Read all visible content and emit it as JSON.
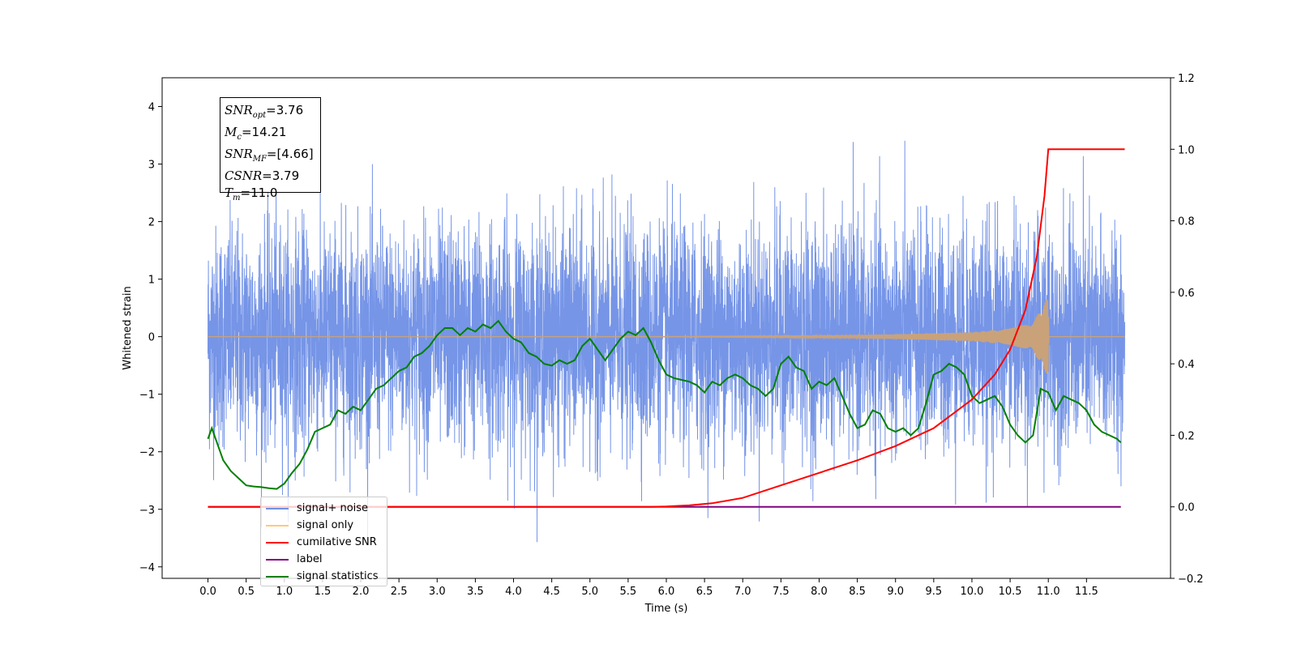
{
  "chart_data": {
    "type": "line",
    "xlabel": "Time (s)",
    "ylabel": "Whitened strain",
    "xlim": [
      -0.6,
      12.6
    ],
    "ylim": [
      -4.2,
      4.5
    ],
    "y2lim": [
      -0.2,
      1.2
    ],
    "x_ticks": [
      "0.0",
      "0.5",
      "1.0",
      "1.5",
      "2.0",
      "2.5",
      "3.0",
      "3.5",
      "4.0",
      "4.5",
      "5.0",
      "5.5",
      "6.0",
      "6.5",
      "7.0",
      "7.5",
      "8.0",
      "8.5",
      "9.0",
      "9.5",
      "10.0",
      "10.5",
      "11.0",
      "11.5"
    ],
    "y_ticks": [
      "4",
      "3",
      "2",
      "1",
      "0",
      "−1",
      "−2",
      "−3",
      "−4"
    ],
    "y2_ticks": [
      "1.2",
      "1.0",
      "0.8",
      "0.6",
      "0.4",
      "0.2",
      "0.0",
      "−0.2"
    ],
    "grid": false,
    "legend_position": "lower-left",
    "legend": [
      "signal+ noise",
      "signal only",
      "cumilative SNR",
      "label",
      "signal statistics"
    ],
    "series": [
      {
        "name": "signal+ noise",
        "color": "#6f8fe6",
        "axis": "left",
        "description": "whitened noise, range about -3.6 to 4.1"
      },
      {
        "name": "signal only",
        "color": "#c9a27a",
        "axis": "left",
        "envelope": {
          "x": [
            0,
            6,
            8,
            9,
            10,
            10.5,
            10.8,
            11.0,
            11.01,
            12.0
          ],
          "amp": [
            0.0,
            0.005,
            0.02,
            0.04,
            0.08,
            0.14,
            0.25,
            0.7,
            0.0,
            0.0
          ]
        }
      },
      {
        "name": "cumilative SNR",
        "color": "#ff0000",
        "axis": "right",
        "x": [
          0,
          5.8,
          6.0,
          6.3,
          6.6,
          7.0,
          7.5,
          8.0,
          8.5,
          9.0,
          9.5,
          10.0,
          10.3,
          10.5,
          10.7,
          10.85,
          10.95,
          11.0,
          11.5,
          12.0
        ],
        "y": [
          0.0,
          0.0,
          0.001,
          0.004,
          0.01,
          0.025,
          0.06,
          0.095,
          0.13,
          0.17,
          0.22,
          0.3,
          0.37,
          0.44,
          0.55,
          0.7,
          0.87,
          1.0,
          1.0,
          1.0
        ]
      },
      {
        "name": "label",
        "color": "#800080",
        "axis": "right",
        "x": [
          0,
          11.95
        ],
        "y": [
          0.0,
          0.0
        ]
      },
      {
        "name": "signal statistics",
        "color": "#008000",
        "axis": "right",
        "x": [
          0.0,
          0.05,
          0.1,
          0.15,
          0.2,
          0.3,
          0.4,
          0.5,
          0.6,
          0.7,
          0.8,
          0.9,
          1.0,
          1.1,
          1.2,
          1.3,
          1.4,
          1.5,
          1.6,
          1.7,
          1.8,
          1.9,
          2.0,
          2.1,
          2.2,
          2.3,
          2.4,
          2.5,
          2.6,
          2.7,
          2.8,
          2.9,
          3.0,
          3.1,
          3.2,
          3.3,
          3.4,
          3.5,
          3.6,
          3.7,
          3.8,
          3.9,
          4.0,
          4.1,
          4.2,
          4.3,
          4.4,
          4.5,
          4.6,
          4.7,
          4.8,
          4.9,
          5.0,
          5.1,
          5.2,
          5.3,
          5.4,
          5.5,
          5.6,
          5.7,
          5.8,
          5.9,
          6.0,
          6.1,
          6.2,
          6.3,
          6.4,
          6.5,
          6.6,
          6.7,
          6.8,
          6.9,
          7.0,
          7.1,
          7.2,
          7.3,
          7.4,
          7.5,
          7.6,
          7.7,
          7.8,
          7.9,
          8.0,
          8.1,
          8.2,
          8.3,
          8.4,
          8.5,
          8.6,
          8.7,
          8.8,
          8.9,
          9.0,
          9.1,
          9.2,
          9.3,
          9.4,
          9.5,
          9.6,
          9.7,
          9.8,
          9.9,
          10.0,
          10.1,
          10.2,
          10.3,
          10.4,
          10.5,
          10.6,
          10.7,
          10.8,
          10.9,
          11.0,
          11.1,
          11.2,
          11.3,
          11.4,
          11.5,
          11.6,
          11.7,
          11.8,
          11.9,
          11.95
        ],
        "y": [
          0.19,
          0.22,
          0.19,
          0.16,
          0.13,
          0.1,
          0.08,
          0.06,
          0.057,
          0.055,
          0.052,
          0.05,
          0.065,
          0.095,
          0.12,
          0.16,
          0.21,
          0.22,
          0.23,
          0.27,
          0.26,
          0.28,
          0.27,
          0.3,
          0.33,
          0.34,
          0.36,
          0.38,
          0.39,
          0.42,
          0.43,
          0.45,
          0.48,
          0.5,
          0.5,
          0.48,
          0.5,
          0.49,
          0.51,
          0.5,
          0.52,
          0.49,
          0.47,
          0.46,
          0.43,
          0.42,
          0.4,
          0.395,
          0.41,
          0.4,
          0.41,
          0.45,
          0.47,
          0.44,
          0.41,
          0.44,
          0.47,
          0.49,
          0.48,
          0.5,
          0.46,
          0.41,
          0.37,
          0.36,
          0.355,
          0.35,
          0.34,
          0.32,
          0.35,
          0.34,
          0.36,
          0.37,
          0.36,
          0.34,
          0.33,
          0.31,
          0.33,
          0.4,
          0.42,
          0.39,
          0.38,
          0.33,
          0.35,
          0.34,
          0.36,
          0.31,
          0.26,
          0.22,
          0.23,
          0.27,
          0.26,
          0.22,
          0.21,
          0.22,
          0.2,
          0.22,
          0.29,
          0.37,
          0.38,
          0.4,
          0.39,
          0.37,
          0.31,
          0.29,
          0.3,
          0.31,
          0.28,
          0.23,
          0.2,
          0.18,
          0.2,
          0.33,
          0.32,
          0.27,
          0.31,
          0.3,
          0.29,
          0.27,
          0.23,
          0.21,
          0.2,
          0.19,
          0.18
        ]
      }
    ]
  },
  "infobox": [
    {
      "base": "SNR",
      "sub": "opt",
      "value": "=3.76"
    },
    {
      "base": "M",
      "sub": "c",
      "value": "=14.21"
    },
    {
      "base": "SNR",
      "sub": "MF",
      "value": "=[4.66]"
    },
    {
      "base": "CSNR",
      "sub": "",
      "value": "=3.79"
    },
    {
      "base": "T",
      "sub": "m",
      "value": "=11.0"
    }
  ]
}
